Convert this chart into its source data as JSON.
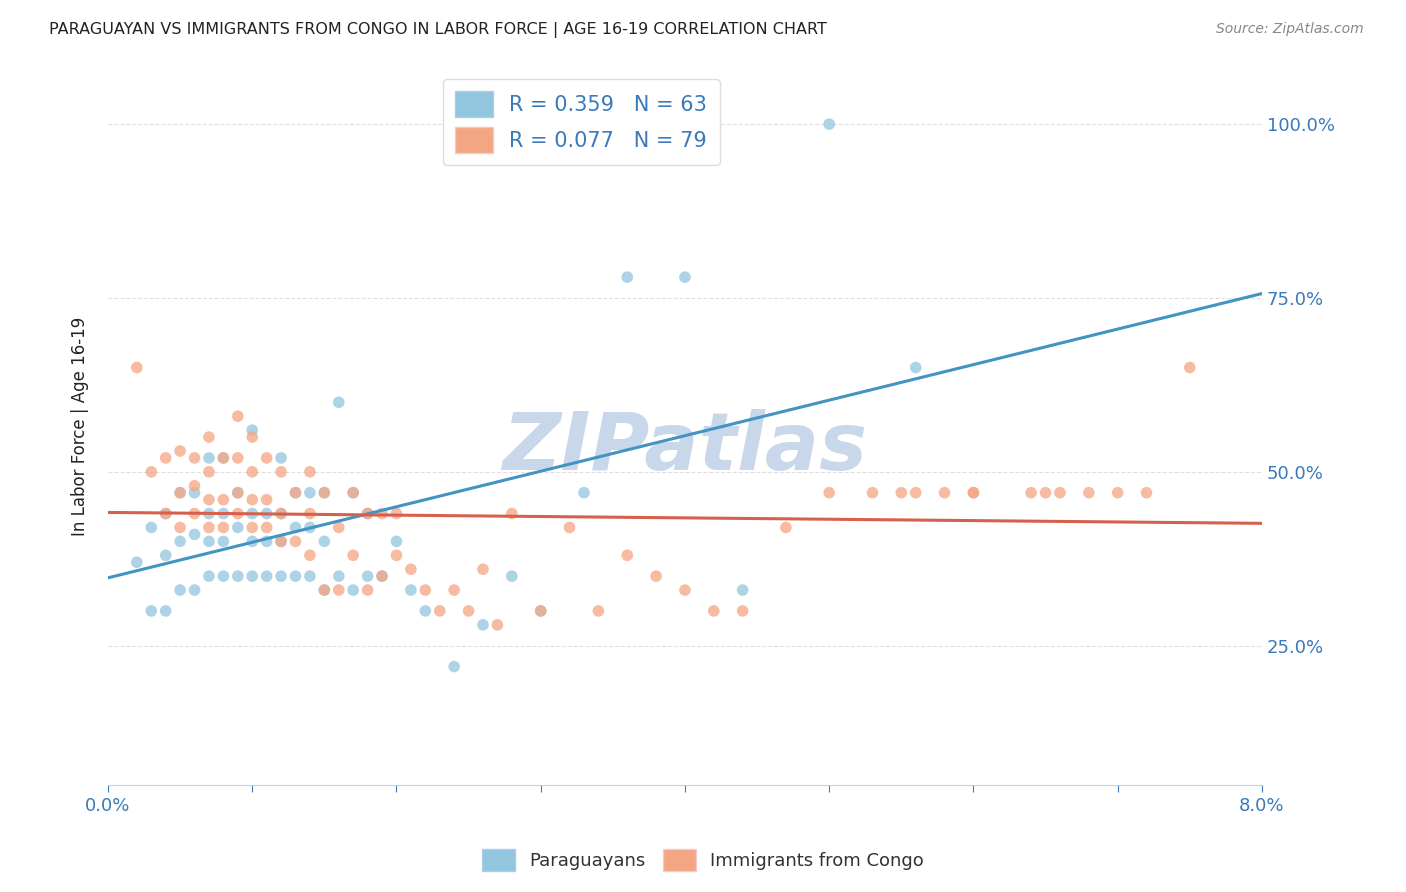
{
  "title": "PARAGUAYAN VS IMMIGRANTS FROM CONGO IN LABOR FORCE | AGE 16-19 CORRELATION CHART",
  "source": "Source: ZipAtlas.com",
  "ylabel": "In Labor Force | Age 16-19",
  "xlim": [
    0.0,
    0.08
  ],
  "ylim": [
    0.05,
    1.08
  ],
  "watermark": "ZIPatlas",
  "blue_color": "#92c5de",
  "pink_color": "#f4a582",
  "blue_line_color": "#4393c3",
  "pink_line_color": "#d6604d",
  "blue_R": 0.359,
  "blue_N": 63,
  "pink_R": 0.077,
  "pink_N": 79,
  "blue_scatter_x": [
    0.002,
    0.003,
    0.003,
    0.004,
    0.004,
    0.004,
    0.005,
    0.005,
    0.005,
    0.006,
    0.006,
    0.006,
    0.007,
    0.007,
    0.007,
    0.007,
    0.008,
    0.008,
    0.008,
    0.008,
    0.009,
    0.009,
    0.009,
    0.01,
    0.01,
    0.01,
    0.01,
    0.011,
    0.011,
    0.011,
    0.012,
    0.012,
    0.012,
    0.012,
    0.013,
    0.013,
    0.013,
    0.014,
    0.014,
    0.014,
    0.015,
    0.015,
    0.015,
    0.016,
    0.016,
    0.017,
    0.017,
    0.018,
    0.018,
    0.019,
    0.02,
    0.021,
    0.022,
    0.024,
    0.026,
    0.028,
    0.03,
    0.033,
    0.036,
    0.04,
    0.044,
    0.05,
    0.056
  ],
  "blue_scatter_y": [
    0.37,
    0.3,
    0.42,
    0.3,
    0.38,
    0.44,
    0.33,
    0.4,
    0.47,
    0.33,
    0.41,
    0.47,
    0.35,
    0.4,
    0.44,
    0.52,
    0.35,
    0.4,
    0.44,
    0.52,
    0.35,
    0.42,
    0.47,
    0.35,
    0.4,
    0.44,
    0.56,
    0.35,
    0.4,
    0.44,
    0.35,
    0.4,
    0.44,
    0.52,
    0.35,
    0.42,
    0.47,
    0.35,
    0.42,
    0.47,
    0.33,
    0.4,
    0.47,
    0.35,
    0.6,
    0.33,
    0.47,
    0.35,
    0.44,
    0.35,
    0.4,
    0.33,
    0.3,
    0.22,
    0.28,
    0.35,
    0.3,
    0.47,
    0.78,
    0.78,
    0.33,
    1.0,
    0.65
  ],
  "pink_scatter_x": [
    0.002,
    0.003,
    0.004,
    0.004,
    0.005,
    0.005,
    0.005,
    0.006,
    0.006,
    0.006,
    0.007,
    0.007,
    0.007,
    0.007,
    0.008,
    0.008,
    0.008,
    0.009,
    0.009,
    0.009,
    0.009,
    0.01,
    0.01,
    0.01,
    0.01,
    0.011,
    0.011,
    0.011,
    0.012,
    0.012,
    0.012,
    0.013,
    0.013,
    0.014,
    0.014,
    0.014,
    0.015,
    0.015,
    0.016,
    0.016,
    0.017,
    0.017,
    0.018,
    0.018,
    0.019,
    0.019,
    0.02,
    0.02,
    0.021,
    0.022,
    0.023,
    0.024,
    0.025,
    0.026,
    0.027,
    0.028,
    0.03,
    0.032,
    0.034,
    0.036,
    0.038,
    0.04,
    0.042,
    0.044,
    0.047,
    0.05,
    0.053,
    0.056,
    0.06,
    0.064,
    0.068,
    0.072,
    0.06,
    0.065,
    0.055,
    0.07,
    0.066,
    0.058,
    0.075
  ],
  "pink_scatter_y": [
    0.65,
    0.5,
    0.44,
    0.52,
    0.42,
    0.47,
    0.53,
    0.44,
    0.48,
    0.52,
    0.42,
    0.46,
    0.5,
    0.55,
    0.42,
    0.46,
    0.52,
    0.44,
    0.47,
    0.52,
    0.58,
    0.42,
    0.46,
    0.5,
    0.55,
    0.42,
    0.46,
    0.52,
    0.4,
    0.44,
    0.5,
    0.4,
    0.47,
    0.38,
    0.44,
    0.5,
    0.33,
    0.47,
    0.33,
    0.42,
    0.38,
    0.47,
    0.33,
    0.44,
    0.35,
    0.44,
    0.38,
    0.44,
    0.36,
    0.33,
    0.3,
    0.33,
    0.3,
    0.36,
    0.28,
    0.44,
    0.3,
    0.42,
    0.3,
    0.38,
    0.35,
    0.33,
    0.3,
    0.3,
    0.42,
    0.47,
    0.47,
    0.47,
    0.47,
    0.47,
    0.47,
    0.47,
    0.47,
    0.47,
    0.47,
    0.47,
    0.47,
    0.47,
    0.65
  ],
  "background_color": "#ffffff",
  "grid_color": "#e0e0e0",
  "title_color": "#222222",
  "axis_color": "#3a7ab8",
  "watermark_color": "#c8d8ea"
}
